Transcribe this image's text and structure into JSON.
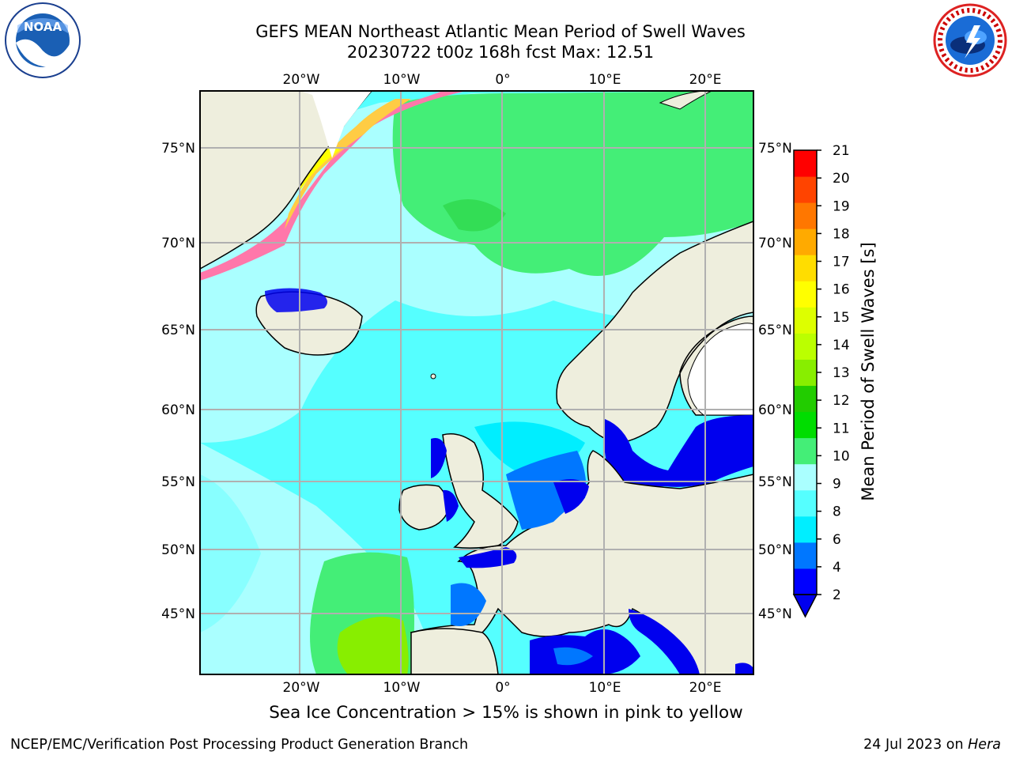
{
  "title_line1": "GEFS MEAN Northeast Atlantic Mean Period of Swell Waves",
  "title_line2": "20230722 t00z 168h fcst   Max: 12.51",
  "logos": {
    "left": "NOAA",
    "right": "NATIONAL WEATHER SERVICE"
  },
  "map": {
    "lon_labels": [
      "20°W",
      "10°W",
      "0°",
      "10°E",
      "20°E"
    ],
    "lat_labels": [
      "75°N",
      "70°N",
      "65°N",
      "60°N",
      "55°N",
      "50°N",
      "45°N"
    ],
    "colors": {
      "land": "#eeeedd",
      "ocean_main": "#55ffff",
      "ocean_green": "#44ee77",
      "ocean_blue": "#0000ee"
    }
  },
  "colorbar": {
    "label": "Mean Period of Swell Waves [s]",
    "ticks": [
      "21",
      "20",
      "19",
      "18",
      "17",
      "16",
      "15",
      "14",
      "13",
      "12",
      "11",
      "10",
      "9",
      "8",
      "6",
      "4",
      "2"
    ],
    "colors": [
      "#0000ff",
      "#0077ff",
      "#00eeff",
      "#55ffff",
      "#aaffff",
      "#44ee77",
      "#00dd00",
      "#22cc00",
      "#88ee00",
      "#bbff00",
      "#ddff00",
      "#ffff00",
      "#ffdd00",
      "#ffaa00",
      "#ff7700",
      "#ff4400",
      "#ff0000"
    ]
  },
  "subtitle": "Sea Ice Concentration > 15% is shown in pink to yellow",
  "footer_left": "NCEP/EMC/Verification Post Processing Product Generation Branch",
  "footer_right_prefix": "24 Jul 2023 on",
  "footer_right_host": "Hera"
}
